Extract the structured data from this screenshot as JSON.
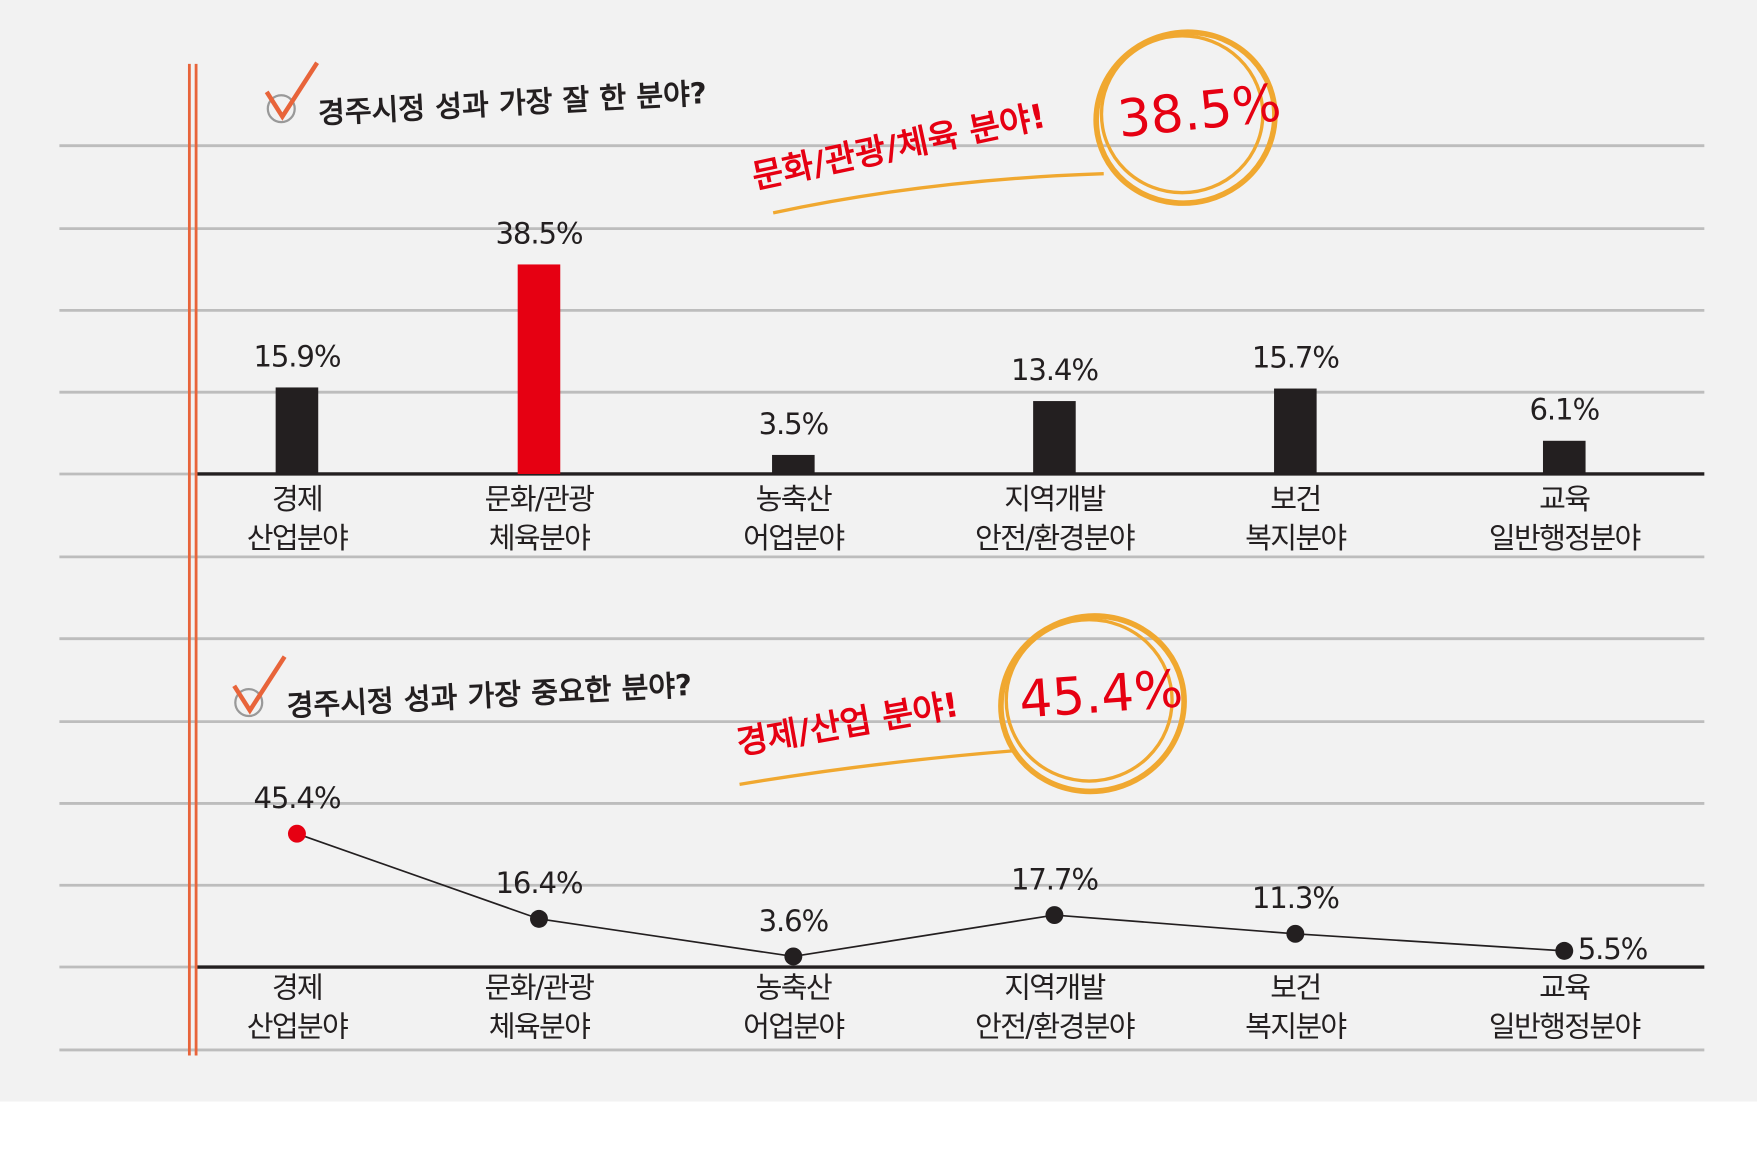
{
  "chart_data": [
    {
      "type": "bar",
      "title": "경주시정 성과 가장 잘 한 분야?",
      "annotation": "문화/관광/체육 분야!",
      "highlight": "38.5%",
      "categories": [
        [
          "경제",
          "산업분야"
        ],
        [
          "문화/관광",
          "체육분야"
        ],
        [
          "농축산",
          "어업분야"
        ],
        [
          "지역개발",
          "안전/환경분야"
        ],
        [
          "보건",
          "복지분야"
        ],
        [
          "교육",
          "일반행정분야"
        ]
      ],
      "values": [
        15.9,
        38.5,
        3.5,
        13.4,
        15.7,
        6.1
      ],
      "value_labels": [
        "15.9%",
        "38.5%",
        "3.5%",
        "13.4%",
        "15.7%",
        "6.1%"
      ],
      "colors": [
        "#231f20",
        "#e60012",
        "#231f20",
        "#231f20",
        "#231f20",
        "#231f20"
      ]
    },
    {
      "type": "line",
      "title": "경주시정 성과 가장 중요한 분야?",
      "annotation": "경제/산업 분야!",
      "highlight": "45.4%",
      "categories": [
        [
          "경제",
          "산업분야"
        ],
        [
          "문화/관광",
          "체육분야"
        ],
        [
          "농축산",
          "어업분야"
        ],
        [
          "지역개발",
          "안전/환경분야"
        ],
        [
          "보건",
          "복지분야"
        ],
        [
          "교육",
          "일반행정분야"
        ]
      ],
      "values": [
        45.4,
        16.4,
        3.6,
        17.7,
        11.3,
        5.5
      ],
      "value_labels": [
        "45.4%",
        "16.4%",
        "3.6%",
        "17.7%",
        "11.3%",
        "5.5%"
      ],
      "colors": [
        "#e60012",
        "#231f20",
        "#231f20",
        "#231f20",
        "#231f20",
        "#231f20"
      ]
    }
  ]
}
